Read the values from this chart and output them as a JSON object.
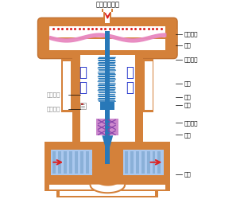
{
  "bg_color": "#ffffff",
  "vc": "#d4813a",
  "vc2": "#c07030",
  "sc": "#2878b8",
  "dc": "#e888c0",
  "pk": "#cc88cc",
  "fc": "#aac8ee",
  "rc": "#dd2222",
  "bl": "#2233cc",
  "title_top": "压力信号入口",
  "label_duo": "多\n仪",
  "label_fa": "阀\n门",
  "r_labels": [
    [
      "膜室上腔",
      40
    ],
    [
      "膜片",
      54
    ],
    [
      "膜室下腔",
      72
    ],
    [
      "弹簧",
      103
    ],
    [
      "推杆",
      120
    ],
    [
      "阀杆",
      130
    ],
    [
      "密封填料",
      153
    ],
    [
      "阀芯",
      168
    ],
    [
      "阀座",
      218
    ]
  ],
  "l_labels": [
    [
      "行程指针",
      117
    ],
    [
      "行程刻度",
      135
    ]
  ]
}
